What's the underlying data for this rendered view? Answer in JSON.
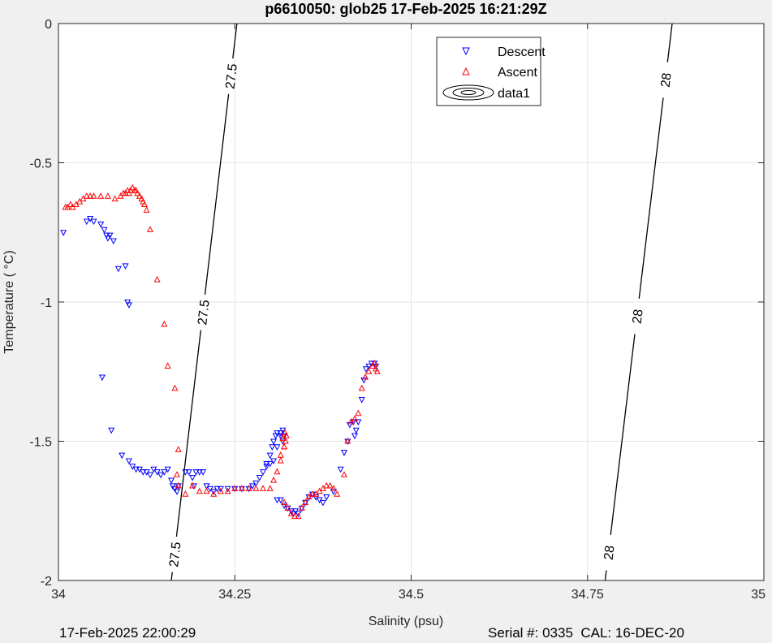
{
  "chart_data": {
    "type": "scatter",
    "title": "p6610050: glob25 17-Feb-2025 16:21:29Z",
    "xlabel": "Salinity (psu)",
    "ylabel": "Temperature (   °C)",
    "xlim": [
      34,
      35
    ],
    "ylim": [
      -2,
      0
    ],
    "xticks": [
      34,
      34.25,
      34.5,
      34.75,
      35
    ],
    "xtick_labels": [
      "34",
      "34.25",
      "34.5",
      "34.75",
      "35"
    ],
    "yticks": [
      0,
      -0.5,
      -1,
      -1.5,
      -2
    ],
    "ytick_labels": [
      "0",
      "-0.5",
      "-1",
      "-1.5",
      "-2"
    ],
    "grid": true,
    "legend_position": "top-right",
    "legend": [
      "Descent",
      "Ascent",
      "data1"
    ],
    "colors": {
      "descent": "#0000ff",
      "ascent": "#ff0000",
      "contour": "#000000",
      "axes_bg": "#ffffff",
      "figure_bg": "#f0f0f0",
      "grid": "#e3e3e3"
    },
    "contours": [
      {
        "level": "27.5",
        "points": [
          [
            34.16,
            -2
          ],
          [
            34.253,
            0
          ]
        ],
        "labels": [
          [
            34.21,
            -1.92
          ],
          [
            34.248,
            -1.05
          ],
          [
            34.28,
            -0.2
          ]
        ]
      },
      {
        "level": "28",
        "points": [
          [
            34.775,
            -2
          ],
          [
            34.87,
            0
          ]
        ],
        "labels": [
          [
            34.78,
            -1.9
          ],
          [
            34.815,
            -1.05
          ],
          [
            34.852,
            -0.2
          ]
        ]
      }
    ],
    "series": [
      {
        "name": "Descent",
        "marker": "triangle-down",
        "points": [
          [
            34.007,
            -0.75
          ],
          [
            34.04,
            -0.71
          ],
          [
            34.045,
            -0.7
          ],
          [
            34.05,
            -0.71
          ],
          [
            34.06,
            -0.72
          ],
          [
            34.065,
            -0.74
          ],
          [
            34.068,
            -0.76
          ],
          [
            34.07,
            -0.77
          ],
          [
            34.073,
            -0.76
          ],
          [
            34.078,
            -0.78
          ],
          [
            34.085,
            -0.88
          ],
          [
            34.095,
            -0.87
          ],
          [
            34.098,
            -1.0
          ],
          [
            34.1,
            -1.01
          ],
          [
            34.062,
            -1.27
          ],
          [
            34.075,
            -1.46
          ],
          [
            34.09,
            -1.55
          ],
          [
            34.1,
            -1.57
          ],
          [
            34.105,
            -1.59
          ],
          [
            34.11,
            -1.6
          ],
          [
            34.115,
            -1.6
          ],
          [
            34.12,
            -1.61
          ],
          [
            34.125,
            -1.61
          ],
          [
            34.13,
            -1.62
          ],
          [
            34.135,
            -1.6
          ],
          [
            34.14,
            -1.61
          ],
          [
            34.145,
            -1.62
          ],
          [
            34.15,
            -1.61
          ],
          [
            34.155,
            -1.6
          ],
          [
            34.16,
            -1.64
          ],
          [
            34.162,
            -1.66
          ],
          [
            34.165,
            -1.67
          ],
          [
            34.168,
            -1.68
          ],
          [
            34.17,
            -1.66
          ],
          [
            34.18,
            -1.61
          ],
          [
            34.185,
            -1.61
          ],
          [
            34.19,
            -1.63
          ],
          [
            34.192,
            -1.66
          ],
          [
            34.195,
            -1.61
          ],
          [
            34.2,
            -1.61
          ],
          [
            34.205,
            -1.61
          ],
          [
            34.21,
            -1.66
          ],
          [
            34.215,
            -1.67
          ],
          [
            34.22,
            -1.68
          ],
          [
            34.225,
            -1.67
          ],
          [
            34.23,
            -1.67
          ],
          [
            34.24,
            -1.67
          ],
          [
            34.25,
            -1.67
          ],
          [
            34.26,
            -1.67
          ],
          [
            34.27,
            -1.67
          ],
          [
            34.275,
            -1.66
          ],
          [
            34.28,
            -1.65
          ],
          [
            34.285,
            -1.63
          ],
          [
            34.29,
            -1.61
          ],
          [
            34.295,
            -1.58
          ],
          [
            34.3,
            -1.55
          ],
          [
            34.303,
            -1.52
          ],
          [
            34.305,
            -1.5
          ],
          [
            34.308,
            -1.48
          ],
          [
            34.31,
            -1.47
          ],
          [
            34.315,
            -1.48
          ],
          [
            34.318,
            -1.5
          ],
          [
            34.32,
            -1.48
          ],
          [
            34.318,
            -1.46
          ],
          [
            34.315,
            -1.47
          ],
          [
            34.31,
            -1.52
          ],
          [
            34.305,
            -1.57
          ],
          [
            34.3,
            -1.58
          ],
          [
            34.295,
            -1.59
          ],
          [
            34.31,
            -1.71
          ],
          [
            34.315,
            -1.71
          ],
          [
            34.32,
            -1.73
          ],
          [
            34.325,
            -1.74
          ],
          [
            34.33,
            -1.75
          ],
          [
            34.333,
            -1.76
          ],
          [
            34.336,
            -1.75
          ],
          [
            34.34,
            -1.76
          ],
          [
            34.345,
            -1.74
          ],
          [
            34.35,
            -1.72
          ],
          [
            34.355,
            -1.7
          ],
          [
            34.36,
            -1.69
          ],
          [
            34.365,
            -1.7
          ],
          [
            34.37,
            -1.71
          ],
          [
            34.375,
            -1.72
          ],
          [
            34.38,
            -1.7
          ],
          [
            34.39,
            -1.68
          ],
          [
            34.4,
            -1.6
          ],
          [
            34.405,
            -1.54
          ],
          [
            34.41,
            -1.5
          ],
          [
            34.413,
            -1.44
          ],
          [
            34.418,
            -1.43
          ],
          [
            34.42,
            -1.48
          ],
          [
            34.422,
            -1.46
          ],
          [
            34.425,
            -1.43
          ],
          [
            34.43,
            -1.35
          ],
          [
            34.433,
            -1.28
          ],
          [
            34.436,
            -1.24
          ],
          [
            34.44,
            -1.23
          ],
          [
            34.444,
            -1.22
          ],
          [
            34.448,
            -1.22
          ],
          [
            34.45,
            -1.23
          ]
        ]
      },
      {
        "name": "Ascent",
        "marker": "triangle-up",
        "points": [
          [
            34.01,
            -0.66
          ],
          [
            34.013,
            -0.66
          ],
          [
            34.017,
            -0.65
          ],
          [
            34.02,
            -0.66
          ],
          [
            34.025,
            -0.65
          ],
          [
            34.03,
            -0.64
          ],
          [
            34.035,
            -0.63
          ],
          [
            34.04,
            -0.62
          ],
          [
            34.045,
            -0.62
          ],
          [
            34.05,
            -0.62
          ],
          [
            34.06,
            -0.62
          ],
          [
            34.07,
            -0.62
          ],
          [
            34.08,
            -0.63
          ],
          [
            34.088,
            -0.62
          ],
          [
            34.092,
            -0.61
          ],
          [
            34.095,
            -0.61
          ],
          [
            34.098,
            -0.6
          ],
          [
            34.1,
            -0.61
          ],
          [
            34.102,
            -0.6
          ],
          [
            34.105,
            -0.59
          ],
          [
            34.108,
            -0.6
          ],
          [
            34.11,
            -0.6
          ],
          [
            34.112,
            -0.61
          ],
          [
            34.115,
            -0.62
          ],
          [
            34.118,
            -0.63
          ],
          [
            34.12,
            -0.64
          ],
          [
            34.122,
            -0.65
          ],
          [
            34.125,
            -0.67
          ],
          [
            34.13,
            -0.74
          ],
          [
            34.14,
            -0.92
          ],
          [
            34.15,
            -1.08
          ],
          [
            34.155,
            -1.23
          ],
          [
            34.165,
            -1.31
          ],
          [
            34.17,
            -1.53
          ],
          [
            34.168,
            -1.62
          ],
          [
            34.17,
            -1.66
          ],
          [
            34.18,
            -1.69
          ],
          [
            34.19,
            -1.66
          ],
          [
            34.2,
            -1.68
          ],
          [
            34.21,
            -1.68
          ],
          [
            34.22,
            -1.69
          ],
          [
            34.23,
            -1.68
          ],
          [
            34.24,
            -1.68
          ],
          [
            34.25,
            -1.67
          ],
          [
            34.26,
            -1.67
          ],
          [
            34.27,
            -1.67
          ],
          [
            34.28,
            -1.67
          ],
          [
            34.29,
            -1.67
          ],
          [
            34.3,
            -1.67
          ],
          [
            34.305,
            -1.64
          ],
          [
            34.31,
            -1.61
          ],
          [
            34.315,
            -1.57
          ],
          [
            34.32,
            -1.52
          ],
          [
            34.322,
            -1.5
          ],
          [
            34.323,
            -1.48
          ],
          [
            34.321,
            -1.47
          ],
          [
            34.318,
            -1.49
          ],
          [
            34.32,
            -1.52
          ],
          [
            34.315,
            -1.55
          ],
          [
            34.32,
            -1.72
          ],
          [
            34.325,
            -1.74
          ],
          [
            34.33,
            -1.76
          ],
          [
            34.335,
            -1.77
          ],
          [
            34.34,
            -1.77
          ],
          [
            34.345,
            -1.74
          ],
          [
            34.35,
            -1.72
          ],
          [
            34.355,
            -1.7
          ],
          [
            34.36,
            -1.69
          ],
          [
            34.365,
            -1.69
          ],
          [
            34.37,
            -1.68
          ],
          [
            34.375,
            -1.67
          ],
          [
            34.38,
            -1.66
          ],
          [
            34.385,
            -1.66
          ],
          [
            34.39,
            -1.67
          ],
          [
            34.395,
            -1.69
          ],
          [
            34.405,
            -1.62
          ],
          [
            34.41,
            -1.5
          ],
          [
            34.415,
            -1.43
          ],
          [
            34.42,
            -1.42
          ],
          [
            34.425,
            -1.4
          ],
          [
            34.43,
            -1.31
          ],
          [
            34.435,
            -1.27
          ],
          [
            34.44,
            -1.25
          ],
          [
            34.445,
            -1.23
          ],
          [
            34.448,
            -1.22
          ],
          [
            34.45,
            -1.24
          ],
          [
            34.452,
            -1.25
          ]
        ]
      }
    ]
  },
  "footer": {
    "left": "17-Feb-2025 22:00:29",
    "right": "Serial #: 0335  CAL: 16-DEC-20"
  }
}
